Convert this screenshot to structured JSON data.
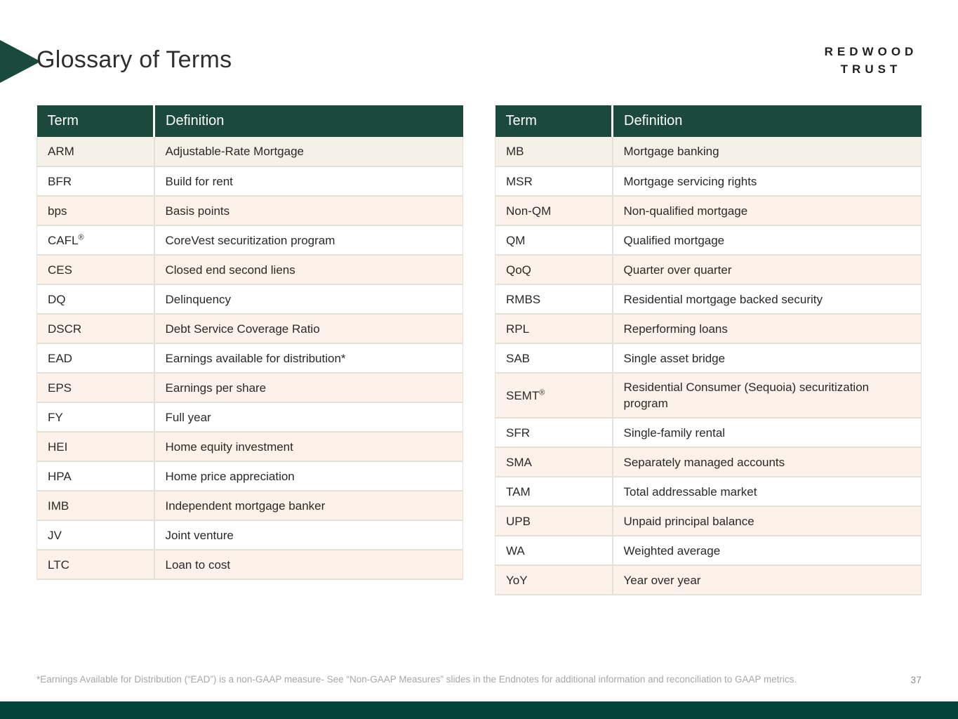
{
  "slide": {
    "title": "Glossary of Terms",
    "logo": {
      "line1": "REDWOOD",
      "line2": "TRUST"
    },
    "footnote": "*Earnings Available for Distribution (“EAD”) is a non-GAAP measure- See “Non-GAAP Measures” slides in the Endnotes for additional information and reconciliation to GAAP metrics.",
    "page_number": "37"
  },
  "tables": [
    {
      "id": "left",
      "headers": [
        "Term",
        "Definition"
      ],
      "rows": [
        {
          "term": "ARM",
          "definition": "Adjustable-Rate Mortgage"
        },
        {
          "term": "BFR",
          "definition": "Build for rent"
        },
        {
          "term": "bps",
          "definition": "Basis points"
        },
        {
          "term": "CAFL",
          "sup": "®",
          "definition": "CoreVest securitization program"
        },
        {
          "term": "CES",
          "definition": "Closed end second liens"
        },
        {
          "term": "DQ",
          "definition": "Delinquency"
        },
        {
          "term": "DSCR",
          "definition": "Debt Service Coverage Ratio"
        },
        {
          "term": "EAD",
          "definition": "Earnings available for distribution*"
        },
        {
          "term": "EPS",
          "definition": "Earnings per share"
        },
        {
          "term": "FY",
          "definition": "Full year"
        },
        {
          "term": "HEI",
          "definition": "Home equity investment"
        },
        {
          "term": "HPA",
          "definition": "Home price appreciation"
        },
        {
          "term": "IMB",
          "definition": "Independent mortgage banker"
        },
        {
          "term": "JV",
          "definition": "Joint venture"
        },
        {
          "term": "LTC",
          "definition": "Loan to cost"
        }
      ]
    },
    {
      "id": "right",
      "headers": [
        "Term",
        "Definition"
      ],
      "rows": [
        {
          "term": "MB",
          "definition": "Mortgage banking"
        },
        {
          "term": "MSR",
          "definition": "Mortgage servicing rights"
        },
        {
          "term": "Non-QM",
          "definition": "Non-qualified mortgage"
        },
        {
          "term": "QM",
          "definition": "Qualified mortgage"
        },
        {
          "term": "QoQ",
          "definition": "Quarter over quarter"
        },
        {
          "term": "RMBS",
          "definition": "Residential mortgage backed security"
        },
        {
          "term": "RPL",
          "definition": "Reperforming loans"
        },
        {
          "term": "SAB",
          "definition": "Single asset bridge"
        },
        {
          "term": "SEMT",
          "sup": "®",
          "definition": "Residential Consumer (Sequoia) securitization program"
        },
        {
          "term": "SFR",
          "definition": "Single-family rental"
        },
        {
          "term": "SMA",
          "definition": "Separately managed accounts"
        },
        {
          "term": "TAM",
          "definition": "Total addressable market"
        },
        {
          "term": "UPB",
          "definition": "Unpaid principal balance"
        },
        {
          "term": "WA",
          "definition": "Weighted average"
        },
        {
          "term": "YoY",
          "definition": "Year over year"
        }
      ]
    }
  ],
  "colors": {
    "header-green": "#1b4a3d",
    "bar-green": "#02443a",
    "arrow-green": "#1a4a3c",
    "row-cream": "#f5f1e8",
    "row-pink": "#fdf2ea",
    "border-gray": "#e4e1da",
    "text-dark": "#2b2829",
    "footnote-gray": "#a7a7a7"
  }
}
